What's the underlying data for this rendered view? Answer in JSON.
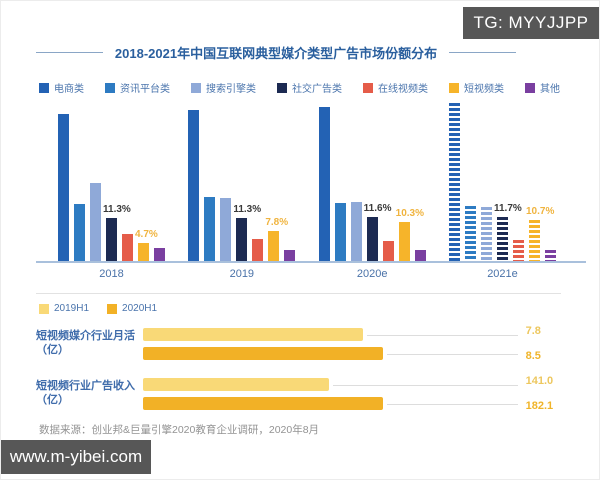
{
  "watermarks": {
    "top_right": "TG: MYYJJPP",
    "bottom_left": "www.m-yibei.com"
  },
  "title": "2018-2021年中国互联网典型媒介类型广告市场份额分布",
  "source": "数据来源：创业邦&巨量引擎2020教育企业调研，2020年8月",
  "colors": {
    "title_blue": "#2a5f9e",
    "axis_text": "#4a72a8",
    "dark_label": "#3a3a3a",
    "yellow_label": "#f0b43f",
    "baseline": "#a9c0dc"
  },
  "chart_data": [
    {
      "type": "bar",
      "title": "2018-2021年中国互联网典型媒介类型广告市场份额分布",
      "unit": "%",
      "categories": [
        "2018",
        "2019",
        "2020e",
        "2021e"
      ],
      "striped_categories": [
        "2021e"
      ],
      "series": [
        {
          "name": "电商类",
          "color": "#2362b4",
          "values": [
            38.7,
            39.7,
            40.5,
            41.6
          ]
        },
        {
          "name": "资讯平台类",
          "color": "#2d7bc2",
          "values": [
            15.0,
            16.8,
            15.3,
            14.5
          ]
        },
        {
          "name": "搜索引擎类",
          "color": "#8fa9d8",
          "values": [
            20.5,
            16.6,
            15.5,
            14.2
          ]
        },
        {
          "name": "社交广告类",
          "color": "#1c2a52",
          "values": [
            11.3,
            11.3,
            11.6,
            11.7
          ]
        },
        {
          "name": "在线视频类",
          "color": "#e55c49",
          "values": [
            7.1,
            5.8,
            5.3,
            5.5
          ]
        },
        {
          "name": "短视频类",
          "color": "#f6b42a",
          "values": [
            4.7,
            7.8,
            10.3,
            10.7
          ]
        },
        {
          "name": "其他",
          "color": "#7a3fa0",
          "values": [
            3.4,
            2.9,
            2.9,
            2.9
          ]
        }
      ],
      "data_labels": {
        "社交广告类": [
          "11.3%",
          "11.3%",
          "11.6%",
          "11.7%"
        ],
        "短视频类": [
          "4.7%",
          "7.8%",
          "10.3%",
          "10.7%"
        ]
      },
      "legend_position": "top",
      "grid": false
    },
    {
      "type": "bar",
      "orientation": "horizontal",
      "legend": [
        {
          "label": "2019H1",
          "color": "#f9d977"
        },
        {
          "label": "2020H1",
          "color": "#f2b126"
        }
      ],
      "rows": [
        {
          "label": "短视频媒介行业月活（亿）",
          "values": [
            7.8,
            8.5
          ],
          "value_labels": [
            "7.8",
            "8.5"
          ]
        },
        {
          "label": "短视频行业广告收入（亿）",
          "values": [
            141.0,
            182.1
          ],
          "value_labels": [
            "141.0",
            "182.1"
          ]
        }
      ]
    }
  ]
}
